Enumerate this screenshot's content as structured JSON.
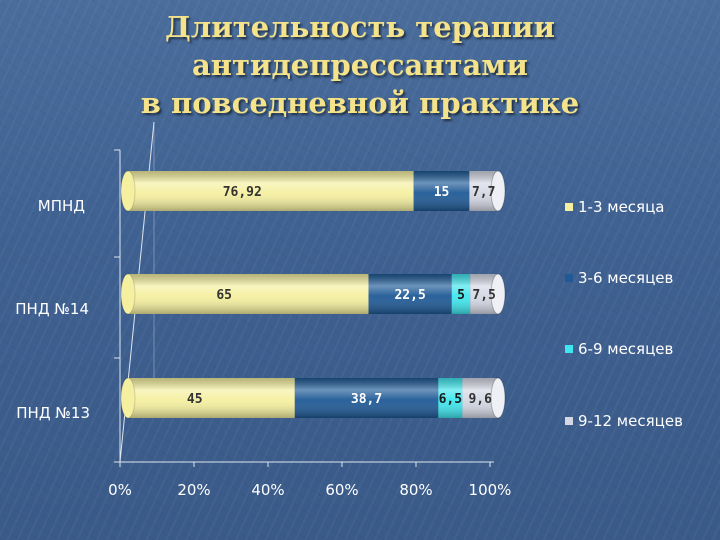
{
  "title": {
    "line1": "Длительность терапии антидепрессантами",
    "line2": "в повседневной практике"
  },
  "chart_data": {
    "type": "bar",
    "orientation": "horizontal",
    "stacked": "percent",
    "categories": [
      "МПНД",
      "ПНД №14",
      "ПНД №13"
    ],
    "series": [
      {
        "name": "1-3 месяца",
        "values": [
          76.92,
          65,
          45
        ],
        "labels": [
          "76,92",
          "65",
          "45"
        ],
        "color": "#f5f0a0"
      },
      {
        "name": "3-6 месяцев",
        "values": [
          15,
          22.5,
          38.7
        ],
        "labels": [
          "15",
          "22,5",
          "38,7"
        ],
        "color": "#1f5a96"
      },
      {
        "name": "6-9 месяцев",
        "values": [
          0,
          5,
          6.5
        ],
        "labels": [
          "",
          "5",
          "6,5"
        ],
        "color": "#3fe6ee"
      },
      {
        "name": "9-12 месяцев",
        "values": [
          7.7,
          7.5,
          9.6
        ],
        "labels": [
          "7,7",
          "7,5",
          "9,6"
        ],
        "color": "#d4d8e4"
      }
    ],
    "xticks": [
      "0%",
      "20%",
      "40%",
      "60%",
      "80%",
      "100%"
    ],
    "xlim": [
      0,
      100
    ],
    "legend_position": "right",
    "grid": false
  }
}
